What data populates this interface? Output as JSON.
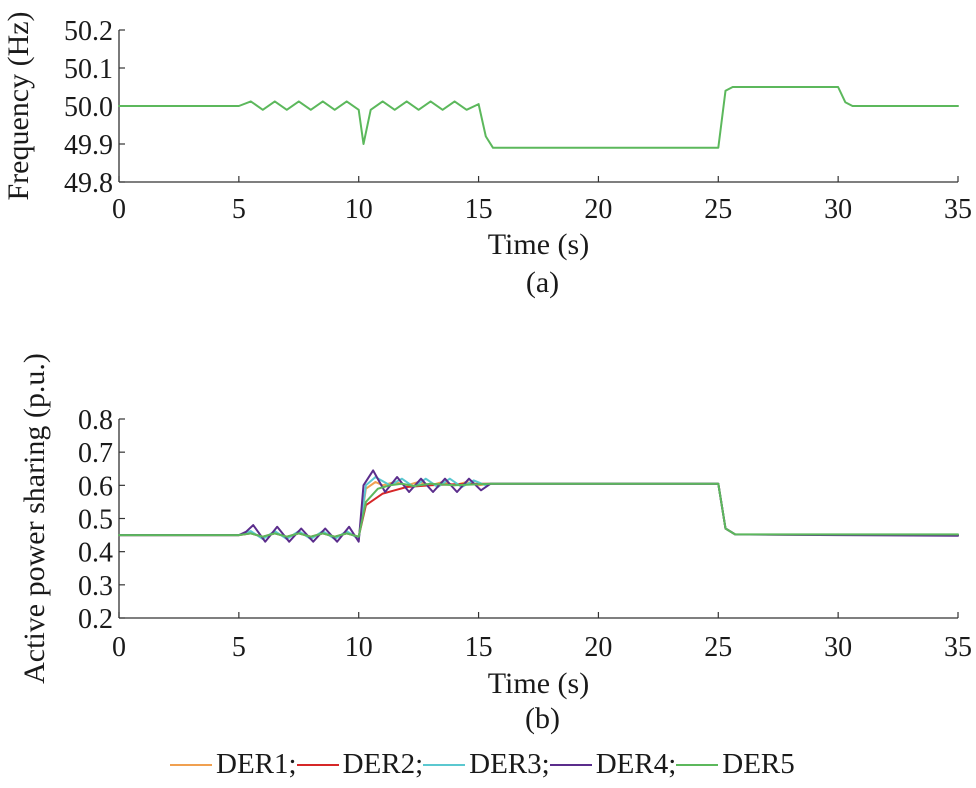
{
  "chart_data": [
    {
      "type": "line",
      "panel_label": "(a)",
      "xlabel": "Time (s)",
      "ylabel": "Frequency (Hz)",
      "xlim": [
        0,
        35
      ],
      "ylim": [
        49.8,
        50.2
      ],
      "xticks": [
        "0",
        "5",
        "10",
        "15",
        "20",
        "25",
        "30",
        "35"
      ],
      "yticks": [
        "49.8",
        "49.9",
        "50.0",
        "50.1",
        "50.2"
      ],
      "series": [
        {
          "name": "DER5",
          "color": "#5cb85c",
          "x": [
            0,
            5,
            5.5,
            6,
            6.5,
            7,
            7.5,
            8,
            8.5,
            9,
            9.5,
            10,
            10.2,
            10.5,
            11,
            11.5,
            12,
            12.5,
            13,
            13.5,
            14,
            14.5,
            15,
            15.3,
            15.6,
            20,
            25,
            25.3,
            25.6,
            30,
            30.3,
            30.6,
            35
          ],
          "y": [
            50.0,
            50.0,
            50.012,
            49.99,
            50.012,
            49.99,
            50.012,
            49.99,
            50.012,
            49.99,
            50.012,
            49.99,
            49.9,
            49.99,
            50.012,
            49.99,
            50.012,
            49.99,
            50.012,
            49.99,
            50.012,
            49.99,
            50.005,
            49.92,
            49.89,
            49.89,
            49.89,
            50.04,
            50.05,
            50.05,
            50.01,
            50.0,
            50.0
          ]
        }
      ],
      "grid": false
    },
    {
      "type": "line",
      "panel_label": "(b)",
      "xlabel": "Time (s)",
      "ylabel": "Active power sharing (p.u.)",
      "xlim": [
        0,
        35
      ],
      "ylim": [
        0.2,
        0.8
      ],
      "xticks": [
        "0",
        "5",
        "10",
        "15",
        "20",
        "25",
        "30",
        "35"
      ],
      "yticks": [
        "0.2",
        "0.3",
        "0.4",
        "0.5",
        "0.6",
        "0.7",
        "0.8"
      ],
      "series": [
        {
          "name": "DER1",
          "color": "#f0a050",
          "x": [
            0,
            5,
            5.5,
            6,
            6.5,
            7,
            7.5,
            8,
            8.5,
            9,
            9.5,
            10,
            10.3,
            10.7,
            11,
            11.5,
            12,
            12.5,
            13,
            13.5,
            14,
            14.5,
            15,
            15.5,
            20,
            25,
            25.3,
            25.7,
            35
          ],
          "y": [
            0.45,
            0.45,
            0.46,
            0.44,
            0.46,
            0.44,
            0.46,
            0.44,
            0.46,
            0.44,
            0.46,
            0.44,
            0.59,
            0.61,
            0.6,
            0.61,
            0.6,
            0.61,
            0.6,
            0.61,
            0.6,
            0.61,
            0.6,
            0.605,
            0.605,
            0.605,
            0.47,
            0.452,
            0.45
          ]
        },
        {
          "name": "DER2",
          "color": "#d62728",
          "x": [
            0,
            5,
            5.5,
            6,
            6.5,
            7,
            7.5,
            8,
            8.5,
            9,
            9.5,
            10,
            10.3,
            11,
            11.5,
            12,
            13,
            14,
            15,
            15.5,
            20,
            25,
            25.3,
            25.7,
            35
          ],
          "y": [
            0.45,
            0.45,
            0.455,
            0.445,
            0.455,
            0.445,
            0.455,
            0.445,
            0.455,
            0.445,
            0.455,
            0.445,
            0.54,
            0.575,
            0.585,
            0.595,
            0.6,
            0.603,
            0.605,
            0.605,
            0.605,
            0.605,
            0.47,
            0.452,
            0.45
          ]
        },
        {
          "name": "DER3",
          "color": "#5bc8d0",
          "x": [
            0,
            5,
            5.5,
            6,
            6.5,
            7,
            7.5,
            8,
            8.5,
            9,
            9.5,
            10,
            10.3,
            10.7,
            11.3,
            11.8,
            12.3,
            12.8,
            13.3,
            13.8,
            14.3,
            14.8,
            15.3,
            15.5,
            20,
            25,
            25.3,
            25.7,
            35
          ],
          "y": [
            0.45,
            0.45,
            0.462,
            0.438,
            0.462,
            0.438,
            0.462,
            0.438,
            0.462,
            0.438,
            0.462,
            0.438,
            0.6,
            0.625,
            0.6,
            0.62,
            0.595,
            0.62,
            0.595,
            0.62,
            0.595,
            0.615,
            0.6,
            0.605,
            0.605,
            0.605,
            0.47,
            0.452,
            0.45
          ]
        },
        {
          "name": "DER4",
          "color": "#5b2d8c",
          "x": [
            0,
            5,
            5.3,
            5.6,
            6.1,
            6.6,
            7.1,
            7.6,
            8.1,
            8.6,
            9.1,
            9.6,
            10,
            10.2,
            10.6,
            11.1,
            11.6,
            12.1,
            12.6,
            13.1,
            13.6,
            14.1,
            14.6,
            15.1,
            15.5,
            20,
            25,
            25.3,
            25.7,
            30,
            35
          ],
          "y": [
            0.45,
            0.45,
            0.46,
            0.48,
            0.43,
            0.475,
            0.43,
            0.47,
            0.43,
            0.47,
            0.43,
            0.475,
            0.43,
            0.6,
            0.645,
            0.58,
            0.625,
            0.58,
            0.62,
            0.58,
            0.62,
            0.58,
            0.62,
            0.585,
            0.605,
            0.605,
            0.605,
            0.47,
            0.452,
            0.45,
            0.448
          ]
        },
        {
          "name": "DER5",
          "color": "#5cb85c",
          "x": [
            0,
            5,
            5.5,
            6,
            6.5,
            7,
            7.5,
            8,
            8.5,
            9,
            9.5,
            10,
            10.3,
            10.8,
            11.3,
            11.8,
            12.3,
            13,
            14,
            15,
            15.5,
            20,
            25,
            25.3,
            25.7,
            30,
            35
          ],
          "y": [
            0.45,
            0.45,
            0.455,
            0.445,
            0.455,
            0.445,
            0.455,
            0.445,
            0.455,
            0.445,
            0.455,
            0.445,
            0.55,
            0.59,
            0.6,
            0.605,
            0.598,
            0.605,
            0.6,
            0.603,
            0.605,
            0.605,
            0.605,
            0.47,
            0.452,
            0.452,
            0.452
          ]
        }
      ],
      "grid": false
    }
  ],
  "legend": {
    "position": "bottom",
    "items": [
      {
        "label": "DER1;",
        "color": "#f0a050"
      },
      {
        "label": "DER2;",
        "color": "#d62728"
      },
      {
        "label": "DER3;",
        "color": "#5bc8d0"
      },
      {
        "label": "DER4;",
        "color": "#5b2d8c"
      },
      {
        "label": "DER5",
        "color": "#5cb85c"
      }
    ]
  }
}
